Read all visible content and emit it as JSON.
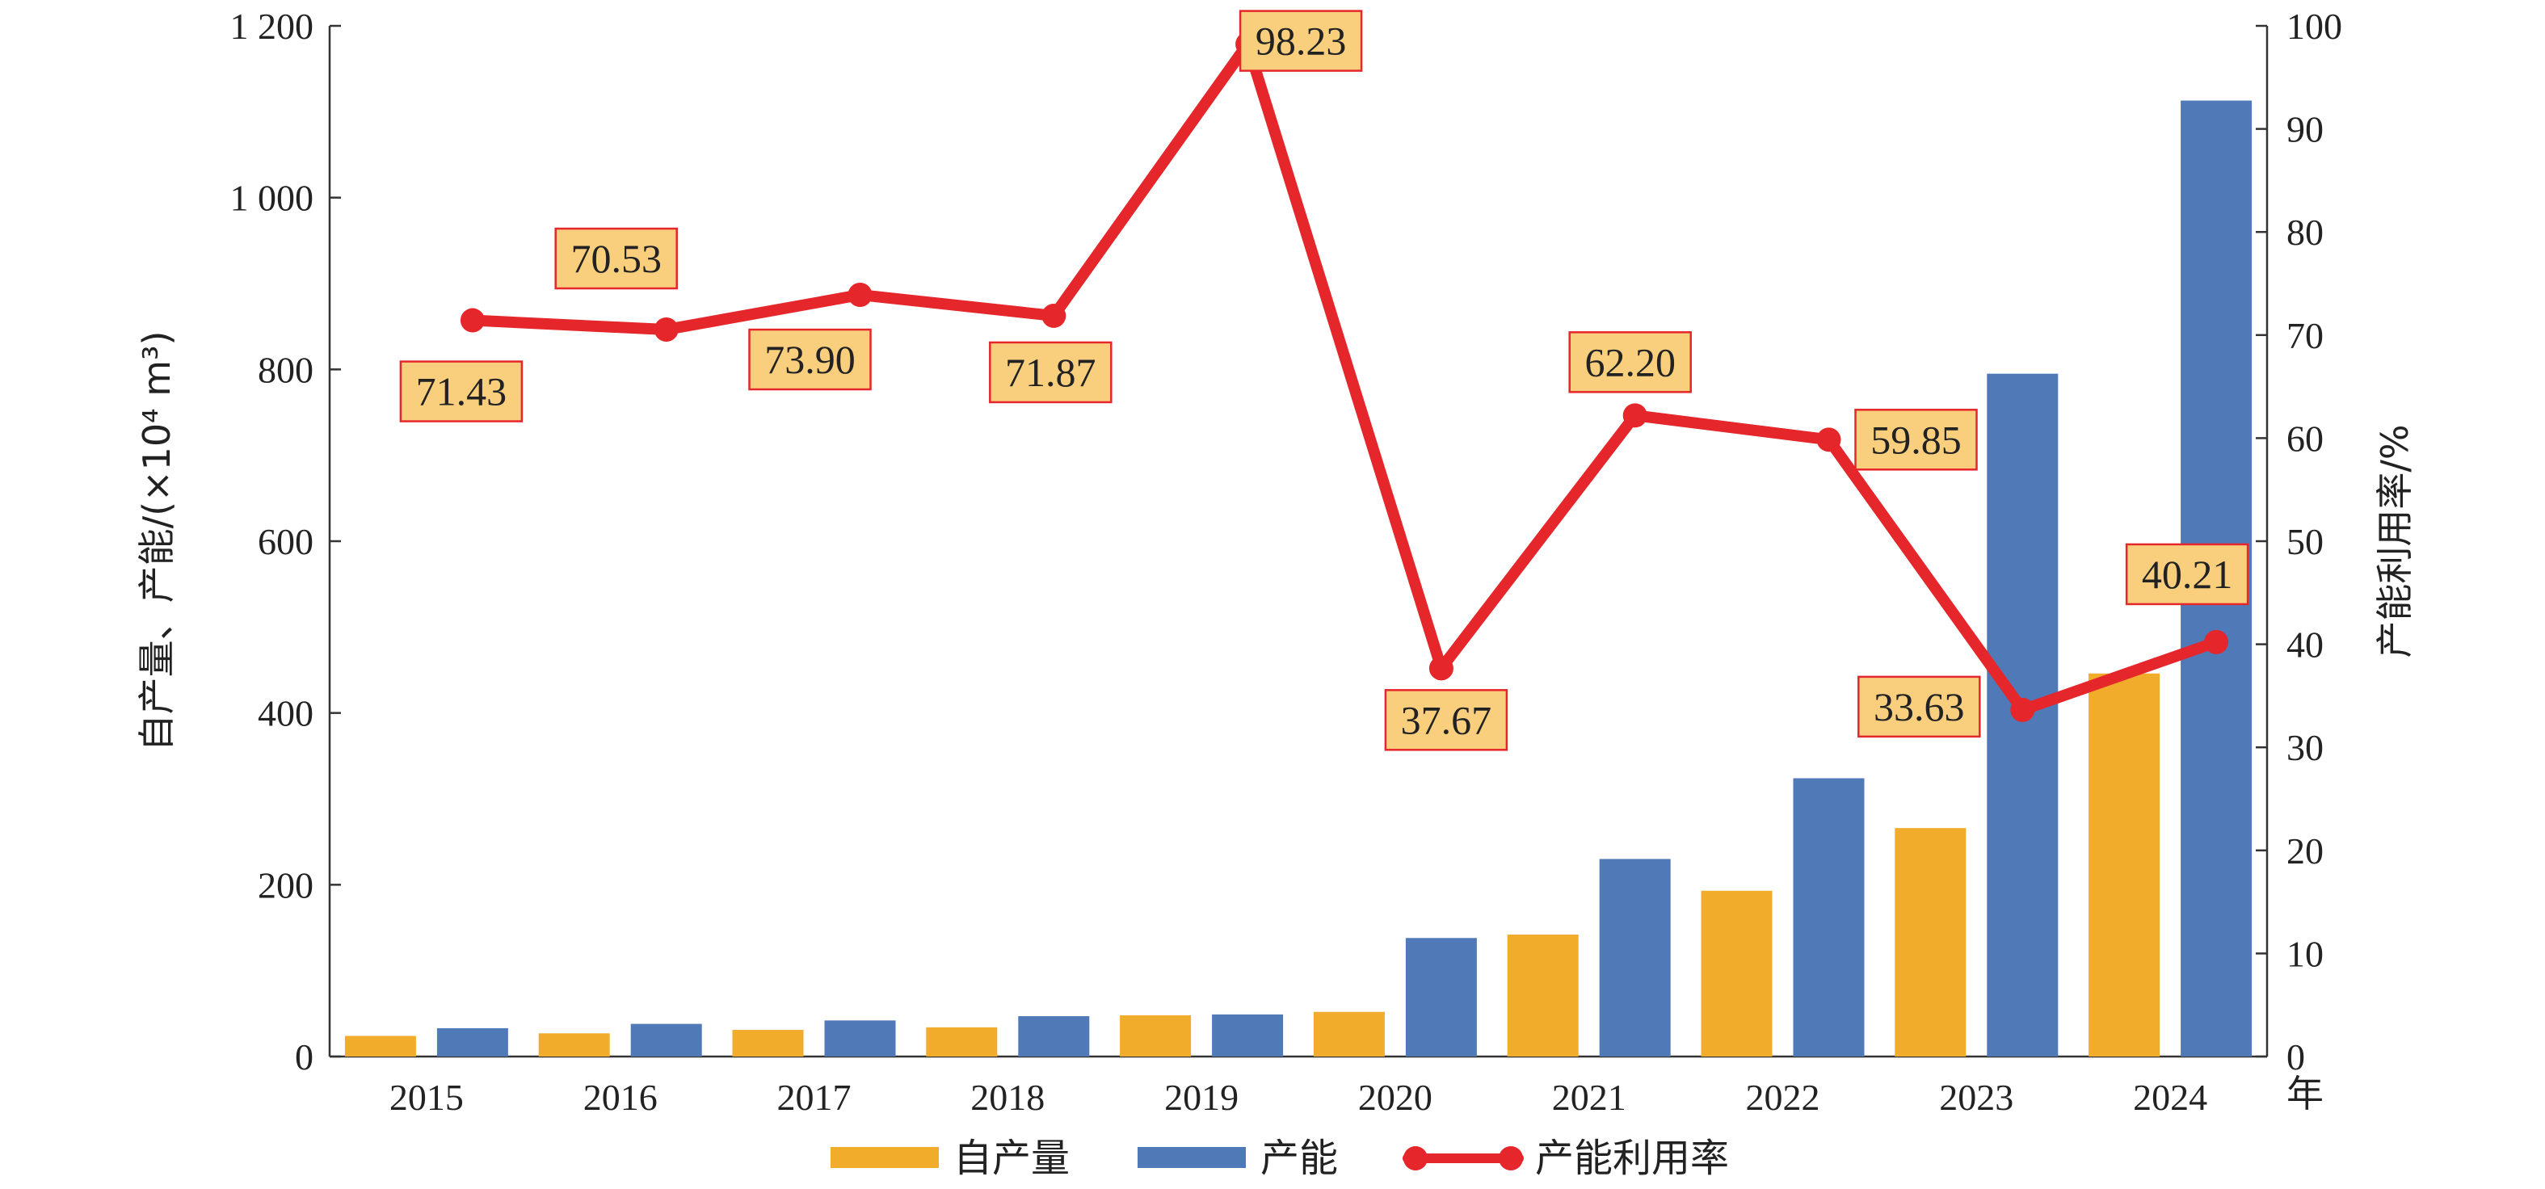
{
  "chart_data": {
    "type": "bar+line",
    "categories": [
      "2015",
      "2016",
      "2017",
      "2018",
      "2019",
      "2020",
      "2021",
      "2022",
      "2023",
      "2024"
    ],
    "x_unit": "年",
    "series": [
      {
        "name": "自产量",
        "type": "bar",
        "axis": "left",
        "color": "#f0ac2a",
        "values": [
          24,
          27,
          31,
          34,
          48,
          52,
          142,
          193,
          266,
          446
        ]
      },
      {
        "name": "产能",
        "type": "bar",
        "axis": "left",
        "color": "#5079b8",
        "values": [
          33,
          38,
          42,
          47,
          49,
          138,
          230,
          324,
          795,
          1113
        ]
      },
      {
        "name": "产能利用率",
        "type": "line",
        "axis": "right",
        "color": "#e5262b",
        "values": [
          71.43,
          70.53,
          73.9,
          71.87,
          98.23,
          37.67,
          62.2,
          59.85,
          33.63,
          40.21
        ],
        "labels": [
          "71.43",
          "70.53",
          "73.90",
          "71.87",
          "98.23",
          "37.67",
          "62.20",
          "59.85",
          "33.63",
          "40.21"
        ]
      }
    ],
    "y_left": {
      "label": "自产量、产能/(×10⁴ m³)",
      "min": 0,
      "max": 1200,
      "ticks": [
        0,
        200,
        400,
        600,
        800,
        1000,
        1200
      ],
      "tick_labels": [
        "0",
        "200",
        "400",
        "600",
        "800",
        "1 000",
        "1 200"
      ]
    },
    "y_right": {
      "label": "产能利用率/%",
      "min": 0,
      "max": 100,
      "ticks": [
        0,
        10,
        20,
        30,
        40,
        50,
        60,
        70,
        80,
        90,
        100
      ],
      "tick_labels": [
        "0",
        "10",
        "20",
        "30",
        "40",
        "50",
        "60",
        "70",
        "80",
        "90",
        "100"
      ]
    },
    "label_style": {
      "fill": "#f9cf7e",
      "stroke": "#e5262b"
    },
    "legend": {
      "position": "bottom"
    }
  }
}
